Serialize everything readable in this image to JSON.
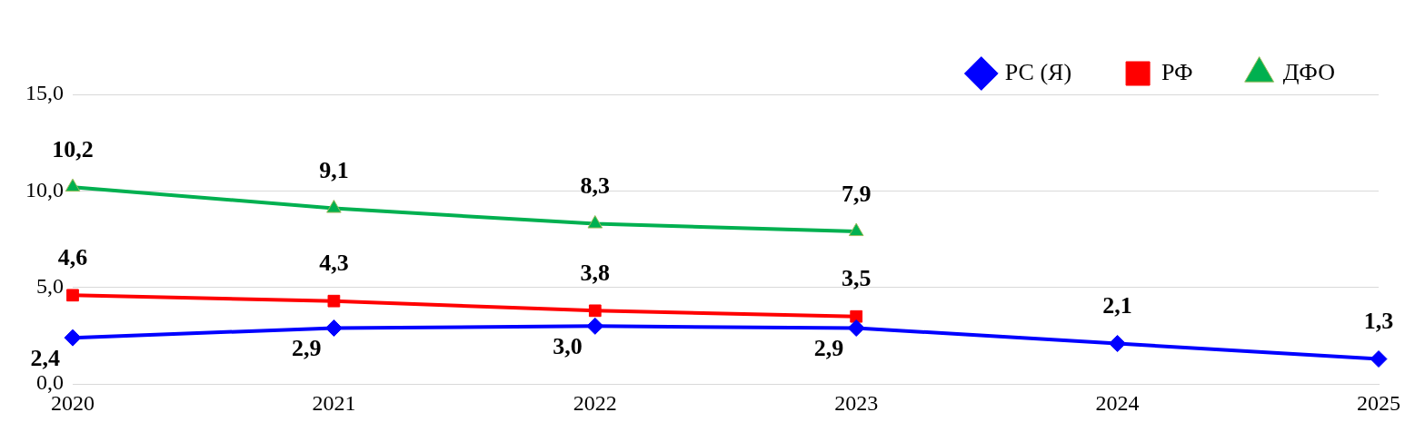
{
  "chart_data": {
    "type": "line",
    "categories": [
      "2020",
      "2021",
      "2022",
      "2023",
      "2024",
      "2025"
    ],
    "series": [
      {
        "name": "РС (Я)",
        "color": "#0000ff",
        "marker": "diamond",
        "values": [
          2.4,
          2.9,
          3.0,
          2.9,
          2.1,
          1.3
        ],
        "value_labels": [
          "2,4",
          "2,9",
          "3,0",
          "2,9",
          "2,1",
          "1,3"
        ]
      },
      {
        "name": "РФ",
        "color": "#ff0000",
        "marker": "square",
        "values": [
          4.6,
          4.3,
          3.8,
          3.5,
          null,
          null
        ],
        "value_labels": [
          "4,6",
          "4,3",
          "3,8",
          "3,5",
          null,
          null
        ]
      },
      {
        "name": "ДФО",
        "color": "#00b050",
        "marker": "triangle",
        "values": [
          10.2,
          9.1,
          8.3,
          7.9,
          null,
          null
        ],
        "value_labels": [
          "10,2",
          "9,1",
          "8,3",
          "7,9",
          null,
          null
        ]
      }
    ],
    "ylim": [
      0,
      15
    ],
    "yticks": [
      {
        "value": 0,
        "label": "0,0"
      },
      {
        "value": 5,
        "label": "5,0"
      },
      {
        "value": 10,
        "label": "10,0"
      },
      {
        "value": 15,
        "label": "15,0"
      }
    ],
    "grid": "y",
    "legend": "top",
    "line_style": "solid"
  }
}
